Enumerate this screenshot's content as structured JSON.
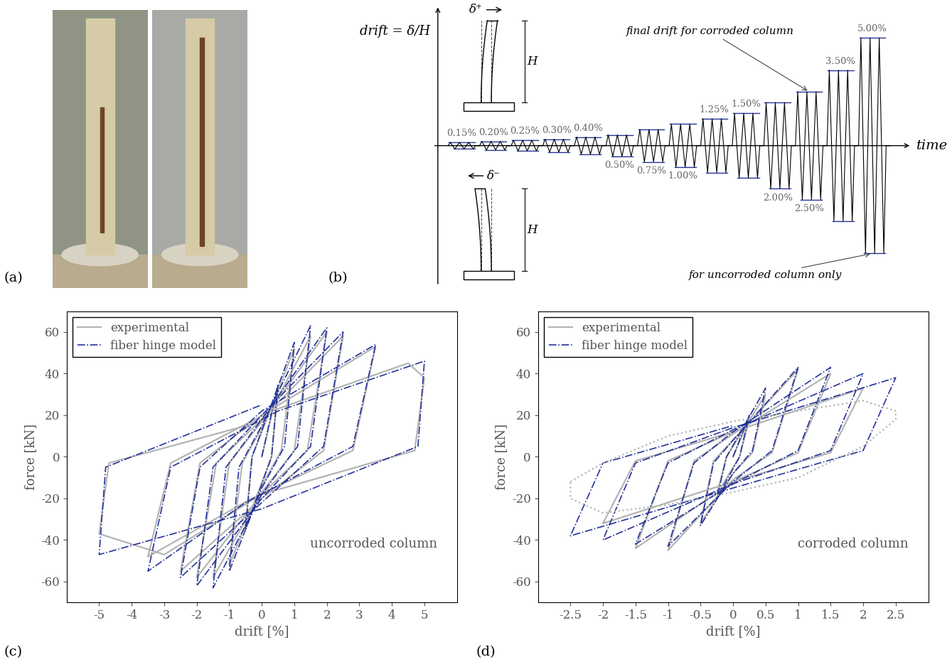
{
  "panel_labels": [
    "(a)",
    "(b)",
    "(c)",
    "(d)"
  ],
  "protocol": {
    "drift_label": "drift = δ/H",
    "positive_label": "δ⁺",
    "negative_label": "δ⁻",
    "height_label": "H",
    "time_label": "time",
    "cycles_per_level": 3,
    "levels": [
      {
        "value": 0.15,
        "label": "0.15%",
        "side": "top"
      },
      {
        "value": 0.2,
        "label": "0.20%",
        "side": "top"
      },
      {
        "value": 0.25,
        "label": "0.25%",
        "side": "top"
      },
      {
        "value": 0.3,
        "label": "0.30%",
        "side": "top"
      },
      {
        "value": 0.4,
        "label": "0.40%",
        "side": "top"
      },
      {
        "value": 0.5,
        "label": "0.50%",
        "side": "bottom"
      },
      {
        "value": 0.75,
        "label": "0.75%",
        "side": "bottom"
      },
      {
        "value": 1.0,
        "label": "1.00%",
        "side": "bottom"
      },
      {
        "value": 1.25,
        "label": "1.25%",
        "side": "top"
      },
      {
        "value": 1.5,
        "label": "1.50%",
        "side": "top"
      },
      {
        "value": 2.0,
        "label": "2.00%",
        "side": "bottom"
      },
      {
        "value": 2.5,
        "label": "2.50%",
        "side": "bottom"
      },
      {
        "value": 3.5,
        "label": "3.50%",
        "side": "top"
      },
      {
        "value": 5.0,
        "label": "5.00%",
        "side": "top"
      }
    ],
    "annotations": [
      {
        "text": "final drift for corroded column",
        "drift": 2.5,
        "side": "top"
      },
      {
        "text": "for uncorroded column only",
        "drift": 5.0,
        "side": "bottom"
      }
    ]
  },
  "chart_data": [
    {
      "type": "line",
      "x_label": "drift [%]",
      "y_label": "force [kN]",
      "annotation": "uncorroded column",
      "legend": "upper left",
      "xlim": [
        -6,
        6
      ],
      "xticks": [
        -5,
        -4,
        -3,
        -2,
        -1,
        0,
        1,
        2,
        3,
        4,
        5
      ],
      "ylim": [
        -70,
        70
      ],
      "yticks": [
        -60,
        -40,
        -20,
        0,
        20,
        40,
        60
      ],
      "series": [
        {
          "name": "experimental",
          "color": "#b4b4b4",
          "line_style": "solid",
          "x": [
            0,
            0.5,
            0.3,
            -0.5,
            -0.3,
            1.0,
            0.6,
            0,
            -1.0,
            -0.6,
            0,
            1.5,
            1.0,
            0,
            -1.5,
            -1.0,
            0,
            2.0,
            1.4,
            0,
            -2.0,
            -1.4,
            0,
            2.5,
            1.9,
            0,
            -2.5,
            -1.9,
            0,
            3.5,
            2.8,
            -0.3,
            -3.5,
            -2.8,
            0.3,
            4.5,
            5.0,
            4.7,
            0,
            -3.0,
            -5.0,
            -4.7,
            0
          ],
          "values": [
            0,
            33,
            0,
            -33,
            0,
            52,
            3,
            -14,
            -52,
            -3,
            14,
            58,
            3,
            -17,
            -58,
            -3,
            17,
            60,
            3,
            -18,
            -58,
            -3,
            18,
            58,
            3,
            -20,
            -55,
            -3,
            20,
            53,
            3,
            -20,
            -48,
            -3,
            22,
            45,
            38,
            3,
            -18,
            -47,
            -37,
            -3,
            17
          ]
        },
        {
          "name": "fiber hinge model",
          "color": "#25339a",
          "line_style": "dashdot",
          "x": [
            0,
            0.5,
            0.3,
            -0.5,
            -0.3,
            1.0,
            0.7,
            0,
            -1.0,
            -0.7,
            0,
            1.5,
            1.1,
            0,
            -1.5,
            -1.1,
            0,
            2.0,
            1.5,
            0,
            -2.0,
            -1.5,
            0,
            2.5,
            1.9,
            0,
            -2.5,
            -1.9,
            0,
            3.5,
            2.8,
            -0.5,
            -3.5,
            -2.8,
            0.5,
            5.0,
            4.8,
            0,
            -5.0,
            -4.8,
            0
          ],
          "values": [
            0,
            35,
            0,
            -35,
            0,
            55,
            5,
            -15,
            -55,
            -5,
            15,
            63,
            5,
            -18,
            -63,
            -5,
            18,
            62,
            5,
            -20,
            -62,
            -5,
            20,
            60,
            5,
            -22,
            -58,
            -5,
            22,
            54,
            5,
            -22,
            -55,
            -5,
            22,
            46,
            5,
            -25,
            -47,
            -5,
            25
          ]
        }
      ]
    },
    {
      "type": "line",
      "x_label": "drift [%]",
      "y_label": "force [kN]",
      "annotation": "corroded column",
      "legend": "upper left",
      "xlim": [
        -3,
        3
      ],
      "xticks": [
        -2.5,
        -2,
        -1.5,
        -1,
        -0.5,
        0,
        0.5,
        1,
        1.5,
        2,
        2.5
      ],
      "ylim": [
        -70,
        70
      ],
      "yticks": [
        -60,
        -40,
        -20,
        0,
        20,
        40,
        60
      ],
      "series": [
        {
          "name": "experimental",
          "color": "#b4b4b4",
          "line_style": "solid",
          "x": [
            0,
            0.25,
            0.1,
            -0.25,
            -0.1,
            0.5,
            0.3,
            0,
            -0.5,
            -0.3,
            0,
            1.0,
            0.6,
            0,
            -1.0,
            -0.6,
            0,
            1.5,
            1.0,
            0,
            -1.5,
            -1.0,
            0,
            2.0,
            1.5,
            0,
            -2.0,
            -1.5,
            0
          ],
          "values": [
            0,
            18,
            0,
            -18,
            0,
            30,
            2,
            -8,
            -32,
            -2,
            8,
            42,
            2,
            -11,
            -45,
            -2,
            11,
            40,
            2,
            -12,
            -44,
            -2,
            12,
            33,
            2,
            -12,
            -32,
            -2,
            12
          ]
        },
        {
          "name": "fiber hinge model",
          "color": "#25339a",
          "line_style": "dashdot",
          "x": [
            0,
            0.25,
            0.1,
            -0.25,
            -0.1,
            0.5,
            0.3,
            0,
            -0.5,
            -0.3,
            0,
            1.0,
            0.6,
            0,
            -1.0,
            -0.6,
            0,
            1.5,
            1.0,
            0,
            -1.5,
            -1.0,
            0,
            2.0,
            1.5,
            0,
            -2.0,
            -1.5,
            0,
            2.5,
            2.0,
            0,
            -2.5,
            -2.0,
            0
          ],
          "values": [
            0,
            20,
            0,
            -20,
            0,
            33,
            3,
            -8,
            -33,
            -3,
            8,
            43,
            3,
            -12,
            -43,
            -3,
            12,
            43,
            3,
            -13,
            -42,
            -3,
            13,
            40,
            3,
            -13,
            -40,
            -3,
            14,
            38,
            3,
            -15,
            -38,
            -3,
            15
          ]
        },
        {
          "color": "#b4b4b4",
          "line_style": "dotted",
          "x": [
            -2.5,
            -2,
            -1,
            0,
            1,
            2,
            2.5,
            2.5,
            2,
            1,
            0,
            -1,
            -2,
            -2.5,
            -2.5
          ],
          "values": [
            -12,
            -3,
            10,
            17,
            22,
            27,
            22,
            18,
            5,
            -10,
            -17,
            -23,
            -27,
            -20,
            -12
          ]
        }
      ]
    }
  ]
}
